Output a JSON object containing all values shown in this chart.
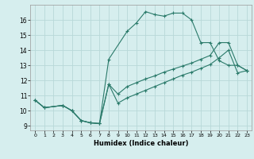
{
  "xlabel": "Humidex (Indice chaleur)",
  "background_color": "#d6eeee",
  "grid_color": "#b8d8d8",
  "line_color": "#2a7a6a",
  "xlim": [
    -0.5,
    23.5
  ],
  "ylim": [
    8.7,
    17.0
  ],
  "xticks": [
    0,
    1,
    2,
    3,
    4,
    5,
    6,
    7,
    8,
    9,
    10,
    11,
    12,
    13,
    14,
    15,
    16,
    17,
    18,
    19,
    20,
    21,
    22,
    23
  ],
  "yticks": [
    9,
    10,
    11,
    12,
    13,
    14,
    15,
    16
  ],
  "line1_x": [
    0,
    1,
    3,
    4,
    5,
    6,
    7,
    8,
    10,
    11,
    12,
    13,
    14,
    15,
    16,
    17,
    18,
    19,
    20,
    21,
    22,
    23
  ],
  "line1_y": [
    10.7,
    10.2,
    10.35,
    10.0,
    9.35,
    9.2,
    9.15,
    13.4,
    15.25,
    15.8,
    16.55,
    16.35,
    16.25,
    16.45,
    16.45,
    16.0,
    14.5,
    14.5,
    13.3,
    13.0,
    13.0,
    12.65
  ],
  "line2_x": [
    0,
    1,
    3,
    4,
    5,
    6,
    7,
    8,
    9,
    10,
    11,
    12,
    13,
    14,
    15,
    16,
    17,
    18,
    19,
    20,
    21,
    22,
    23
  ],
  "line2_y": [
    10.7,
    10.2,
    10.35,
    10.0,
    9.35,
    9.2,
    9.15,
    11.75,
    11.1,
    11.6,
    11.85,
    12.1,
    12.3,
    12.55,
    12.75,
    12.95,
    13.15,
    13.4,
    13.65,
    14.5,
    14.5,
    13.0,
    12.65
  ],
  "line3_x": [
    0,
    1,
    3,
    4,
    5,
    6,
    7,
    8,
    9,
    10,
    11,
    12,
    13,
    14,
    15,
    16,
    17,
    18,
    19,
    20,
    21,
    22,
    23
  ],
  "line3_y": [
    10.7,
    10.2,
    10.35,
    10.0,
    9.35,
    9.2,
    9.15,
    11.75,
    10.5,
    10.85,
    11.1,
    11.35,
    11.6,
    11.85,
    12.1,
    12.35,
    12.55,
    12.8,
    13.05,
    13.5,
    14.0,
    12.5,
    12.65
  ]
}
